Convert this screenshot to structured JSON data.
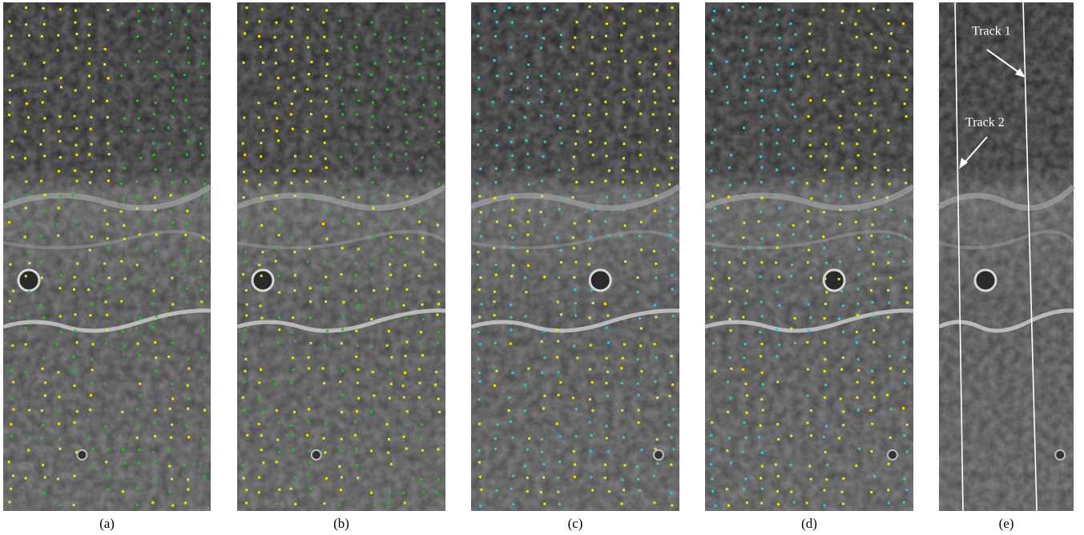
{
  "panels": [
    {
      "caption": "(a)"
    },
    {
      "caption": "(b)"
    },
    {
      "caption": "(c)"
    },
    {
      "caption": "(d)"
    },
    {
      "caption": "(e)"
    }
  ],
  "annotations": {
    "track_1": "Track 1",
    "track_2": "Track 2"
  }
}
